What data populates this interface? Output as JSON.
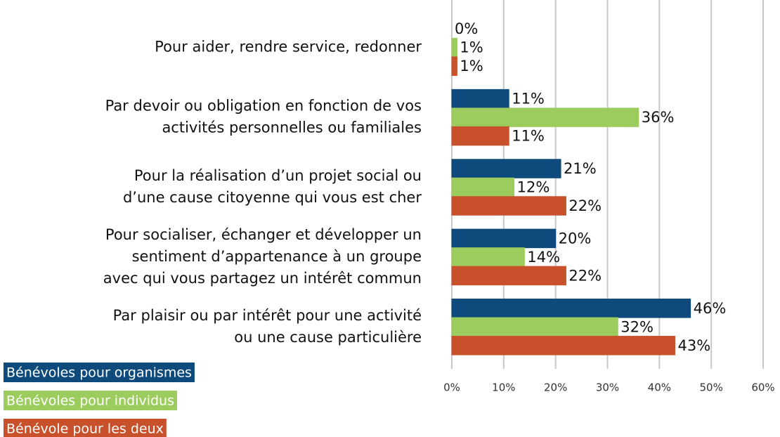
{
  "chart_data": {
    "type": "bar",
    "orientation": "horizontal",
    "categories": [
      [
        "Pour aider, rendre service, redonner"
      ],
      [
        "Par devoir ou obligation en fonction de vos",
        "activités personnelles ou familiales"
      ],
      [
        "Pour la réalisation d’un projet social ou",
        "d’une cause citoyenne qui vous est cher"
      ],
      [
        "Pour socialiser, échanger et développer un",
        "sentiment d’appartenance à un groupe",
        "avec qui vous partagez un intérêt commun"
      ],
      [
        "Par plaisir ou par intérêt pour une activité",
        "ou une cause particulière"
      ]
    ],
    "series": [
      {
        "name": "Bénévoles pour organismes",
        "color": "#0e4a7b",
        "values": [
          0,
          11,
          21,
          20,
          46
        ],
        "value_labels": [
          "0%",
          "11%",
          "21%",
          "20%",
          "46%"
        ]
      },
      {
        "name": "Bénévoles pour individus",
        "color": "#9dcc5e",
        "values": [
          1,
          36,
          12,
          14,
          32
        ],
        "value_labels": [
          "1%",
          "36%",
          "12%",
          "14%",
          "32%"
        ]
      },
      {
        "name": "Bénévole pour les deux",
        "color": "#c8502a",
        "values": [
          1,
          11,
          22,
          22,
          43
        ],
        "value_labels": [
          "1%",
          "11%",
          "22%",
          "22%",
          "43%"
        ]
      }
    ],
    "xlim": [
      0,
      60
    ],
    "xticks": [
      {
        "value": 0,
        "label": "0%"
      },
      {
        "value": 10,
        "label": "10%"
      },
      {
        "value": 20,
        "label": "20%"
      },
      {
        "value": 30,
        "label": "30%"
      },
      {
        "value": 40,
        "label": "40%"
      },
      {
        "value": 50,
        "label": "50%"
      },
      {
        "value": 60,
        "label": "60%"
      }
    ],
    "grid": true,
    "legend": "bottom-left"
  }
}
